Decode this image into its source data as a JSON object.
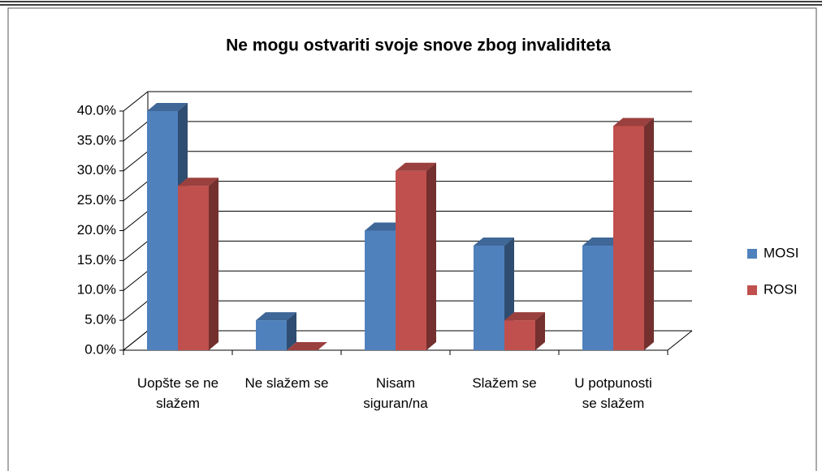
{
  "chart_data": {
    "type": "bar3d",
    "title": "Ne mogu ostvariti svoje snove zbog invaliditeta",
    "categories": [
      "Uopšte se ne slažem",
      "Ne slažem se",
      "Nisam siguran/na",
      "Slažem se",
      "U potpunosti se slažem"
    ],
    "series": [
      {
        "name": "MOSI",
        "color": "#4f81bd",
        "values": [
          40,
          5,
          20,
          17.5,
          17.5
        ]
      },
      {
        "name": "ROSI",
        "color": "#c0504d",
        "values": [
          27.5,
          0,
          30,
          5,
          37.5
        ]
      }
    ],
    "ylim": [
      0,
      40
    ],
    "yticks": [
      {
        "value": 0,
        "label": "0.0%"
      },
      {
        "value": 5,
        "label": "5.0%"
      },
      {
        "value": 10,
        "label": "10.0%"
      },
      {
        "value": 15,
        "label": "15.0%"
      },
      {
        "value": 20,
        "label": "20.0%"
      },
      {
        "value": 25,
        "label": "25.0%"
      },
      {
        "value": 30,
        "label": "30.0%"
      },
      {
        "value": 35,
        "label": "35.0%"
      },
      {
        "value": 40,
        "label": "40.0%"
      }
    ],
    "grid": true,
    "legend": "right"
  }
}
